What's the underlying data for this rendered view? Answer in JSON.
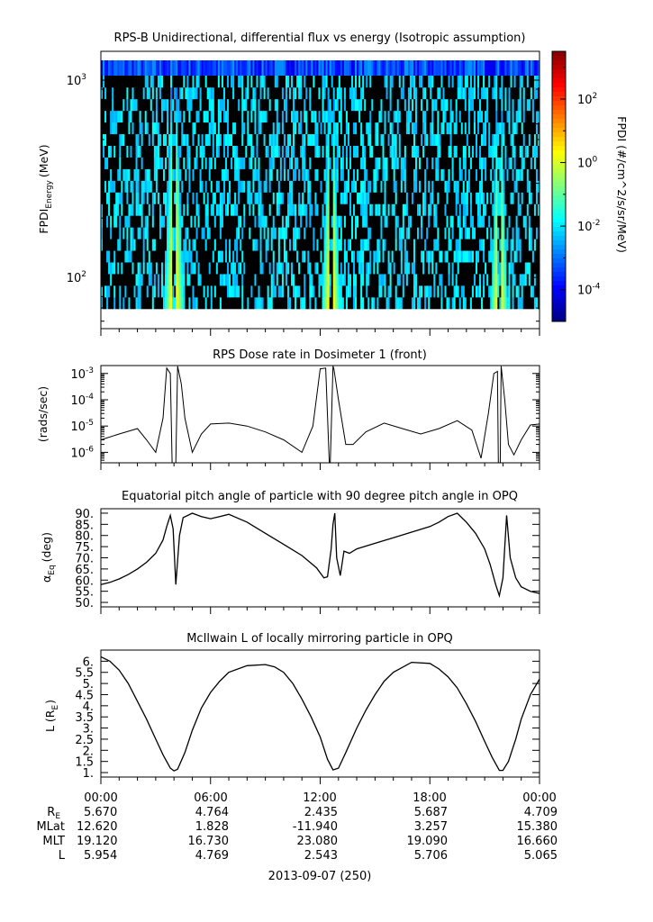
{
  "chart_data": [
    {
      "type": "heatmap",
      "title": "RPS-B  Unidirectional, differential flux vs energy (Isotropic assumption)",
      "ylabel": "FPDI",
      "ylabel_sub": "Energy",
      "ylabel_unit": "(MeV)",
      "yscale": "log",
      "ylim": [
        55,
        1400
      ],
      "yticks": [
        {
          "value": 100,
          "base": "10",
          "exp": "2"
        },
        {
          "value": 1000,
          "base": "10",
          "exp": "3"
        }
      ],
      "xlim_hours": [
        0,
        24
      ],
      "colorbar": {
        "label": "FPDI (#/cm^2/s/sr/MeV)",
        "scale": "log",
        "range_log10": [
          -5,
          3.5
        ],
        "ticks": [
          {
            "log": 2,
            "base": "10",
            "exp": "2"
          },
          {
            "log": 0,
            "base": "10",
            "exp": "0"
          },
          {
            "log": -2,
            "base": "10",
            "exp": "-2"
          },
          {
            "log": -4,
            "base": "10",
            "exp": "-4"
          }
        ]
      },
      "flux_bands_hours": [
        {
          "center": 4.0,
          "gap": 0.12,
          "peak_log": 1.2,
          "halfwidth_low_e": 0.55
        },
        {
          "center": 12.6,
          "gap": 0.12,
          "peak_log": 1.2,
          "halfwidth_low_e": 0.5
        },
        {
          "center": 21.8,
          "gap": 0.1,
          "peak_log": 1.2,
          "halfwidth_low_e": 0.45
        }
      ]
    },
    {
      "type": "line",
      "title": "RPS  Dose rate in Dosimeter 1 (front)",
      "ylabel": "(rads/sec)",
      "yscale": "log",
      "ylim": [
        4e-07,
        0.002
      ],
      "yticks": [
        {
          "value": 0.001,
          "base": "10",
          "exp": "-3"
        },
        {
          "value": 0.0001,
          "base": "10",
          "exp": "-4"
        },
        {
          "value": 1e-05,
          "base": "10",
          "exp": "-5"
        },
        {
          "value": 1e-06,
          "base": "10",
          "exp": "-6"
        }
      ],
      "x_hours": [
        0,
        1.0,
        2.0,
        2.5,
        3.0,
        3.4,
        3.6,
        3.8,
        3.9,
        4.1,
        4.2,
        4.4,
        4.6,
        5.0,
        5.5,
        6.0,
        7.0,
        8.0,
        9.0,
        10.0,
        11.0,
        11.6,
        12.0,
        12.3,
        12.5,
        12.55,
        12.7,
        12.75,
        13.0,
        13.4,
        13.8,
        14.5,
        15.5,
        16.5,
        17.5,
        18.5,
        19.5,
        20.3,
        20.8,
        21.2,
        21.5,
        21.7,
        21.75,
        21.85,
        21.9,
        22.1,
        22.3,
        22.6,
        23.0,
        23.5,
        24.0
      ],
      "values": [
        3e-06,
        5e-06,
        8e-06,
        3e-06,
        1e-06,
        2e-05,
        0.0016,
        0.001,
        4e-07,
        4e-07,
        0.0019,
        0.0004,
        2e-05,
        1e-06,
        5e-06,
        1.2e-05,
        1.3e-05,
        1e-05,
        6e-06,
        3e-06,
        1e-06,
        1e-05,
        0.0015,
        0.0016,
        4e-07,
        4e-07,
        0.0019,
        0.0015,
        0.0001,
        2e-06,
        2e-06,
        6e-06,
        1.3e-05,
        8e-06,
        5e-06,
        8e-06,
        1.6e-05,
        7e-06,
        6e-07,
        3e-05,
        0.001,
        0.0012,
        4e-07,
        4e-07,
        0.0019,
        0.0001,
        2e-06,
        8e-07,
        3e-06,
        1.1e-05,
        1.2e-05
      ]
    },
    {
      "type": "line",
      "title": "Equatorial pitch angle of particle with 90 degree pitch angle in OPQ",
      "ylabel": "α",
      "ylabel_sub": "Eq",
      "ylabel_unit": "(deg)",
      "ylim": [
        48,
        92
      ],
      "yticks": [
        50,
        55,
        60,
        65,
        70,
        75,
        80,
        85,
        90
      ],
      "ytick_labels": [
        "50.",
        "55.",
        "60.",
        "65.",
        "70.",
        "75.",
        "80.",
        "85.",
        "90."
      ],
      "x_hours": [
        0,
        0.5,
        1.0,
        1.5,
        2.0,
        2.5,
        3.0,
        3.4,
        3.6,
        3.8,
        3.95,
        4.1,
        4.3,
        4.5,
        5.0,
        5.5,
        6.0,
        6.5,
        7.0,
        8.0,
        9.0,
        10.0,
        11.0,
        11.8,
        12.2,
        12.4,
        12.6,
        12.7,
        12.8,
        12.9,
        13.1,
        13.3,
        13.6,
        14.0,
        15.0,
        16.0,
        17.0,
        18.0,
        18.5,
        19.0,
        19.5,
        20.0,
        20.5,
        21.0,
        21.3,
        21.6,
        21.8,
        22.0,
        22.2,
        22.4,
        22.7,
        23.0,
        23.5,
        24.0
      ],
      "values": [
        58,
        59,
        60.5,
        62.5,
        65,
        68,
        72,
        78,
        84,
        89,
        83,
        58,
        80,
        88,
        90,
        88.5,
        87.5,
        88.5,
        89.5,
        86,
        81,
        76,
        71,
        65.5,
        61,
        61.5,
        74,
        85,
        90,
        70,
        62,
        73,
        72,
        74,
        76.5,
        79,
        81.5,
        84,
        86,
        88.5,
        90,
        86,
        81,
        74,
        67,
        58,
        53,
        61,
        89,
        70,
        61,
        57,
        55,
        54
      ]
    },
    {
      "type": "line",
      "title": "McIlwain L of locally mirroring particle in OPQ",
      "ylabel": "L (R",
      "ylabel_sub": "E",
      "ylabel_unit": ")",
      "ylim": [
        0.8,
        6.5
      ],
      "yticks": [
        1,
        1.5,
        2,
        2.5,
        3,
        3.5,
        4,
        4.5,
        5,
        5.5,
        6
      ],
      "ytick_labels": [
        "1.",
        "1.5",
        "2.",
        "2.5",
        "3.",
        "3.5",
        "4.",
        "4.5",
        "5.",
        "5.5",
        "6."
      ],
      "x_hours": [
        0,
        0.5,
        1.0,
        1.5,
        2.0,
        2.5,
        3.0,
        3.4,
        3.8,
        4.0,
        4.2,
        4.6,
        5.0,
        5.5,
        6.0,
        6.5,
        7.0,
        8.0,
        9.0,
        9.5,
        10.0,
        10.5,
        11.0,
        11.5,
        12.0,
        12.4,
        12.7,
        13.0,
        13.4,
        14.0,
        14.5,
        15.0,
        15.5,
        16.0,
        17.0,
        18.0,
        18.5,
        19.0,
        19.5,
        20.0,
        20.5,
        21.0,
        21.4,
        21.8,
        22.0,
        22.3,
        22.7,
        23.0,
        23.5,
        24.0
      ],
      "values": [
        6.2,
        6.0,
        5.6,
        5.0,
        4.2,
        3.4,
        2.5,
        1.8,
        1.2,
        1.08,
        1.15,
        1.9,
        2.9,
        3.9,
        4.6,
        5.1,
        5.5,
        5.8,
        5.85,
        5.75,
        5.5,
        5.0,
        4.3,
        3.5,
        2.6,
        1.6,
        1.12,
        1.2,
        1.9,
        3.0,
        3.8,
        4.5,
        5.1,
        5.5,
        5.95,
        5.9,
        5.65,
        5.3,
        4.8,
        4.1,
        3.3,
        2.4,
        1.7,
        1.1,
        1.1,
        1.5,
        2.5,
        3.4,
        4.5,
        5.2
      ]
    }
  ],
  "x_axis": {
    "labels": [
      "00:00",
      "06:00",
      "12:00",
      "18:00",
      "00:00"
    ],
    "date_label": "2013-09-07 (250)",
    "ephemeris": [
      {
        "name": "R",
        "sub": "E",
        "values": [
          "5.670",
          "4.764",
          "2.435",
          "5.687",
          "4.709"
        ]
      },
      {
        "name": "MLat",
        "sub": "",
        "values": [
          "12.620",
          "1.828",
          "-11.940",
          "3.257",
          "15.380"
        ]
      },
      {
        "name": "MLT",
        "sub": "",
        "values": [
          "19.120",
          "16.730",
          "23.080",
          "19.090",
          "16.660"
        ]
      },
      {
        "name": "L",
        "sub": "",
        "values": [
          "5.954",
          "4.769",
          "2.543",
          "5.706",
          "5.065"
        ]
      }
    ]
  }
}
